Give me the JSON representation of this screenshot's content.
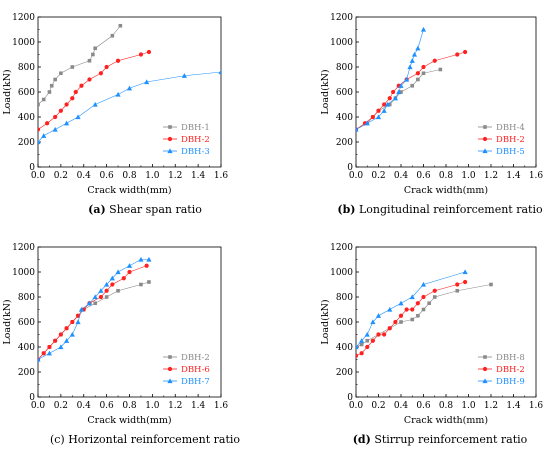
{
  "chart_data": [
    {
      "type": "line",
      "xlabel": "Crack width(mm)",
      "ylabel": "Load(kN)",
      "xlim": [
        0,
        1.6
      ],
      "ylim": [
        0,
        1200
      ],
      "xticks": [
        "0.0",
        "0.2",
        "0.4",
        "0.6",
        "0.8",
        "1.0",
        "1.2",
        "1.4",
        "1.6"
      ],
      "yticks": [
        "0",
        "200",
        "400",
        "600",
        "800",
        "1000",
        "1200"
      ],
      "caption_letter": "(a)",
      "caption_text": " Shear span ratio",
      "legend_position": "bottom-right",
      "series": [
        {
          "name": "DBH-1",
          "color": "#8a8a8a",
          "marker": "square",
          "x": [
            0.0,
            0.05,
            0.1,
            0.12,
            0.15,
            0.2,
            0.3,
            0.45,
            0.48,
            0.5,
            0.65,
            0.72
          ],
          "y": [
            500,
            540,
            600,
            650,
            700,
            750,
            800,
            850,
            900,
            950,
            1050,
            1130
          ]
        },
        {
          "name": "DBH-2",
          "color": "#ff2020",
          "marker": "circle",
          "x": [
            0.0,
            0.08,
            0.15,
            0.2,
            0.25,
            0.3,
            0.33,
            0.38,
            0.45,
            0.55,
            0.6,
            0.7,
            0.9,
            0.97
          ],
          "y": [
            300,
            350,
            400,
            450,
            500,
            550,
            600,
            650,
            700,
            750,
            800,
            850,
            900,
            920
          ]
        },
        {
          "name": "DBH-3",
          "color": "#1e90ff",
          "marker": "triangle",
          "x": [
            0.0,
            0.05,
            0.15,
            0.25,
            0.35,
            0.5,
            0.7,
            0.8,
            0.95,
            1.28,
            1.6
          ],
          "y": [
            200,
            250,
            300,
            350,
            400,
            500,
            580,
            630,
            680,
            730,
            760
          ]
        }
      ]
    },
    {
      "type": "line",
      "xlabel": "Crack width(mm)",
      "ylabel": "Load(kN)",
      "xlim": [
        0,
        1.6
      ],
      "ylim": [
        0,
        1200
      ],
      "xticks": [
        "0.0",
        "0.2",
        "0.4",
        "0.6",
        "0.8",
        "1.0",
        "1.2",
        "1.4",
        "1.6"
      ],
      "yticks": [
        "0",
        "200",
        "400",
        "600",
        "800",
        "1000",
        "1200"
      ],
      "caption_letter": "(b)",
      "caption_text": " Longitudinal reinforcement ratio",
      "legend_position": "bottom-right",
      "series": [
        {
          "name": "DBH-4",
          "color": "#8a8a8a",
          "marker": "square",
          "x": [
            0.0,
            0.1,
            0.15,
            0.2,
            0.3,
            0.35,
            0.4,
            0.5,
            0.55,
            0.6,
            0.75
          ],
          "y": [
            300,
            350,
            400,
            450,
            500,
            550,
            600,
            650,
            700,
            750,
            780
          ]
        },
        {
          "name": "DBH-2",
          "color": "#ff2020",
          "marker": "circle",
          "x": [
            0.0,
            0.08,
            0.15,
            0.2,
            0.25,
            0.3,
            0.33,
            0.38,
            0.45,
            0.55,
            0.6,
            0.7,
            0.9,
            0.97
          ],
          "y": [
            300,
            350,
            400,
            450,
            500,
            550,
            600,
            650,
            700,
            750,
            800,
            850,
            900,
            920
          ]
        },
        {
          "name": "DBH-5",
          "color": "#1e90ff",
          "marker": "triangle",
          "x": [
            0.0,
            0.1,
            0.2,
            0.25,
            0.28,
            0.35,
            0.38,
            0.4,
            0.45,
            0.48,
            0.5,
            0.52,
            0.55,
            0.6
          ],
          "y": [
            300,
            350,
            400,
            450,
            500,
            550,
            600,
            650,
            700,
            800,
            850,
            900,
            950,
            1100
          ]
        }
      ]
    },
    {
      "type": "line",
      "xlabel": "Crack width(mm)",
      "ylabel": "Load(kN)",
      "xlim": [
        0,
        1.6
      ],
      "ylim": [
        0,
        1200
      ],
      "xticks": [
        "0.0",
        "0.2",
        "0.4",
        "0.6",
        "0.8",
        "1.0",
        "1.2",
        "1.4",
        "1.6"
      ],
      "yticks": [
        "0",
        "200",
        "400",
        "600",
        "800",
        "1000",
        "1200"
      ],
      "caption_letter": "",
      "caption_text": "(c) Horizontal reinforcement ratio",
      "legend_position": "bottom-right",
      "series": [
        {
          "name": "DBH-2",
          "color": "#8a8a8a",
          "marker": "square",
          "x": [
            0.0,
            0.05,
            0.1,
            0.15,
            0.2,
            0.25,
            0.3,
            0.35,
            0.4,
            0.5,
            0.6,
            0.7,
            0.9,
            0.97
          ],
          "y": [
            300,
            350,
            400,
            450,
            500,
            550,
            600,
            650,
            700,
            750,
            800,
            850,
            900,
            920
          ]
        },
        {
          "name": "DBH-6",
          "color": "#ff2020",
          "marker": "circle",
          "x": [
            0.0,
            0.05,
            0.1,
            0.15,
            0.2,
            0.25,
            0.3,
            0.35,
            0.4,
            0.45,
            0.55,
            0.6,
            0.65,
            0.75,
            0.8,
            0.95
          ],
          "y": [
            300,
            350,
            400,
            450,
            500,
            550,
            600,
            650,
            700,
            750,
            800,
            850,
            900,
            950,
            1000,
            1050
          ]
        },
        {
          "name": "DBH-7",
          "color": "#1e90ff",
          "marker": "triangle",
          "x": [
            0.0,
            0.1,
            0.2,
            0.25,
            0.3,
            0.35,
            0.38,
            0.45,
            0.5,
            0.55,
            0.6,
            0.65,
            0.7,
            0.8,
            0.9,
            0.97
          ],
          "y": [
            300,
            350,
            400,
            450,
            500,
            600,
            700,
            750,
            800,
            850,
            900,
            950,
            1000,
            1050,
            1100,
            1100
          ]
        }
      ]
    },
    {
      "type": "line",
      "xlabel": "Crack width(mm)",
      "ylabel": "Load(kN)",
      "xlim": [
        0,
        1.6
      ],
      "ylim": [
        0,
        1200
      ],
      "xticks": [
        "0.0",
        "0.2",
        "0.4",
        "0.6",
        "0.8",
        "1.0",
        "1.2",
        "1.4",
        "1.6"
      ],
      "yticks": [
        "0",
        "200",
        "400",
        "600",
        "800",
        "1000",
        "1200"
      ],
      "caption_letter": "(d)",
      "caption_text": " Stirrup reinforcement ratio",
      "legend_position": "bottom-right",
      "series": [
        {
          "name": "DBH-8",
          "color": "#8a8a8a",
          "marker": "square",
          "x": [
            0.0,
            0.05,
            0.1,
            0.2,
            0.3,
            0.4,
            0.5,
            0.55,
            0.6,
            0.65,
            0.7,
            0.9,
            1.2
          ],
          "y": [
            400,
            420,
            450,
            500,
            550,
            600,
            620,
            650,
            700,
            750,
            800,
            850,
            900
          ]
        },
        {
          "name": "DBH-2",
          "color": "#ff2020",
          "marker": "circle",
          "x": [
            0.0,
            0.05,
            0.1,
            0.15,
            0.2,
            0.25,
            0.3,
            0.35,
            0.4,
            0.45,
            0.5,
            0.55,
            0.6,
            0.7,
            0.9,
            0.97
          ],
          "y": [
            330,
            350,
            400,
            450,
            500,
            500,
            550,
            600,
            650,
            700,
            700,
            750,
            800,
            850,
            900,
            920
          ]
        },
        {
          "name": "DBH-9",
          "color": "#1e90ff",
          "marker": "triangle",
          "x": [
            0.0,
            0.05,
            0.1,
            0.15,
            0.2,
            0.3,
            0.4,
            0.5,
            0.6,
            0.97
          ],
          "y": [
            400,
            450,
            500,
            600,
            650,
            700,
            750,
            800,
            900,
            1000
          ]
        }
      ]
    }
  ]
}
